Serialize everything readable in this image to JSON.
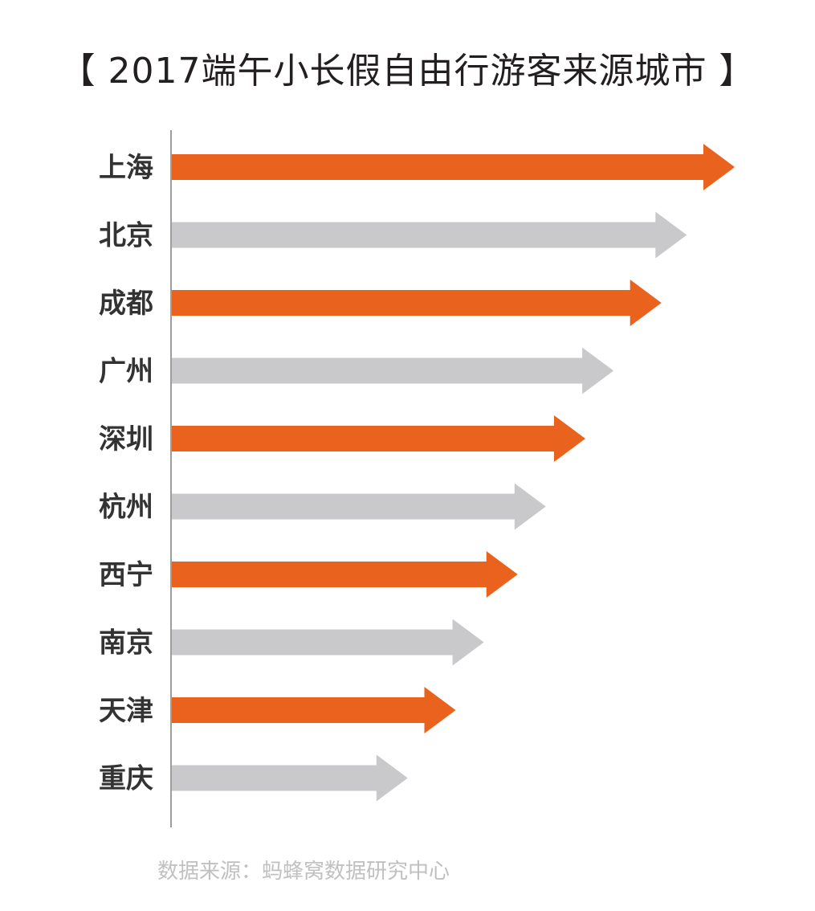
{
  "title": "【 2017端午小长假自由行游客来源城市 】",
  "source": "数据来源：蚂蜂窝数据研究中心",
  "colors": {
    "highlight": "#e9621e",
    "muted": "#c9c9cb",
    "axis": "#9d9d9d",
    "label": "#333333"
  },
  "chart_data": {
    "type": "bar",
    "orientation": "horizontal",
    "categories": [
      "上海",
      "北京",
      "成都",
      "广州",
      "深圳",
      "杭州",
      "西宁",
      "南京",
      "天津",
      "重庆"
    ],
    "values": [
      100,
      91.5,
      87,
      78.5,
      73.5,
      66.5,
      61.5,
      55.5,
      50.5,
      42
    ],
    "bar_colors": [
      "#e9621e",
      "#c9c9cb",
      "#e9621e",
      "#c9c9cb",
      "#e9621e",
      "#c9c9cb",
      "#e9621e",
      "#c9c9cb",
      "#e9621e",
      "#c9c9cb"
    ],
    "title": "【 2017端午小长假自由行游客来源城市 】",
    "xlabel": "",
    "ylabel": "",
    "xlim": [
      0,
      100
    ],
    "axis_ticks": false,
    "grid": false,
    "legend": "none"
  }
}
